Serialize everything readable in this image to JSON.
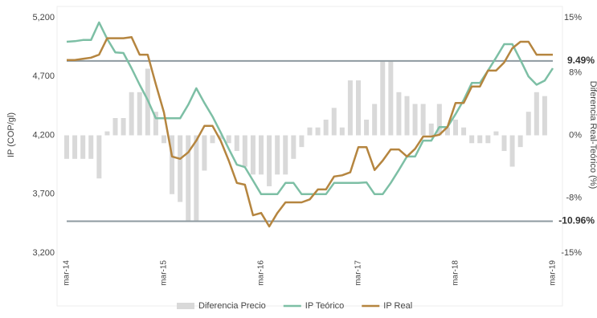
{
  "chart_data": {
    "type": "combo",
    "y_label": "IP (COP/gl)",
    "y2_label": "Diferencia Real-Teórico (%)",
    "categories": [
      "mar-14",
      null,
      null,
      null,
      null,
      null,
      null,
      null,
      null,
      null,
      null,
      null,
      "mar-15",
      null,
      null,
      null,
      null,
      null,
      null,
      null,
      null,
      null,
      null,
      null,
      "mar-16",
      null,
      null,
      null,
      null,
      null,
      null,
      null,
      null,
      null,
      null,
      null,
      "mar-17",
      null,
      null,
      null,
      null,
      null,
      null,
      null,
      null,
      null,
      null,
      null,
      "mar-18",
      null,
      null,
      null,
      null,
      null,
      null,
      null,
      null,
      null,
      null,
      null,
      "mar-19"
    ],
    "ylim": [
      3200,
      5200
    ],
    "yticks": [
      {
        "value": 3200,
        "label": "3,200"
      },
      {
        "value": 3700,
        "label": "3,700"
      },
      {
        "value": 4200,
        "label": "4,200"
      },
      {
        "value": 4700,
        "label": "4,700"
      },
      {
        "value": 5200,
        "label": "5,200"
      }
    ],
    "y2lim": [
      -15,
      15
    ],
    "y2ticks": [
      {
        "value": -15,
        "label": "-15%"
      },
      {
        "value": -8,
        "label": "-8%"
      },
      {
        "value": 0,
        "label": "0%"
      },
      {
        "value": 8,
        "label": "8%"
      },
      {
        "value": 15,
        "label": "15%"
      }
    ],
    "reference_lines": [
      {
        "value": 9.49,
        "label": "9.49%",
        "axis": "y2"
      },
      {
        "value": -10.96,
        "label": "-10.96%",
        "axis": "y2"
      }
    ],
    "reference_color": "#8e9aa0",
    "series": [
      {
        "name": "Diferencia Precio",
        "type": "bar",
        "axis": "y2",
        "color": "#d9d9d9",
        "values": [
          -3,
          -3,
          -3,
          -3,
          -5.5,
          0.5,
          2.2,
          2.2,
          5.5,
          5.5,
          8.5,
          3,
          -1,
          -7.5,
          -8.5,
          -11,
          -11,
          -4.5,
          -1,
          -0.5,
          -1,
          -2,
          -4,
          -5,
          -5,
          -6.5,
          -5,
          -5,
          -3,
          -1.5,
          1,
          1,
          2,
          3.5,
          1,
          7,
          7,
          2,
          4,
          9.5,
          9.5,
          5.5,
          5,
          4,
          4,
          1.5,
          4,
          1,
          2,
          1,
          -1,
          -1,
          -1,
          0.5,
          -2,
          -4,
          -1.5,
          3,
          5.5,
          5,
          null
        ]
      },
      {
        "name": "IP Teórico",
        "type": "line",
        "color": "#7dbfa5",
        "values": [
          4995,
          5000,
          5010,
          5010,
          5160,
          5020,
          4905,
          4900,
          4770,
          4630,
          4500,
          4345,
          4345,
          4345,
          4345,
          4460,
          4600,
          4475,
          4360,
          4225,
          4085,
          3950,
          3930,
          3815,
          3700,
          3700,
          3700,
          3795,
          3795,
          3700,
          3700,
          3700,
          3700,
          3795,
          3795,
          3795,
          3795,
          3800,
          3700,
          3700,
          3795,
          3905,
          4020,
          4020,
          4155,
          4155,
          4270,
          4270,
          4380,
          4500,
          4645,
          4645,
          4750,
          4860,
          4975,
          4975,
          4840,
          4700,
          4630,
          4665,
          4770
        ]
      },
      {
        "name": "IP Real",
        "type": "line",
        "color": "#b5853f",
        "values": [
          4840,
          4840,
          4850,
          4860,
          4885,
          5025,
          5025,
          5025,
          5035,
          4885,
          4885,
          4635,
          4395,
          4020,
          4000,
          4055,
          4155,
          4280,
          4280,
          4155,
          3985,
          3795,
          3780,
          3520,
          3540,
          3425,
          3540,
          3630,
          3630,
          3630,
          3655,
          3740,
          3740,
          3850,
          3860,
          3885,
          4100,
          4100,
          3905,
          3985,
          4080,
          4080,
          4020,
          4085,
          4190,
          4190,
          4205,
          4270,
          4475,
          4475,
          4615,
          4615,
          4750,
          4750,
          4820,
          4940,
          4995,
          4995,
          4885,
          4885,
          4885
        ]
      }
    ]
  }
}
